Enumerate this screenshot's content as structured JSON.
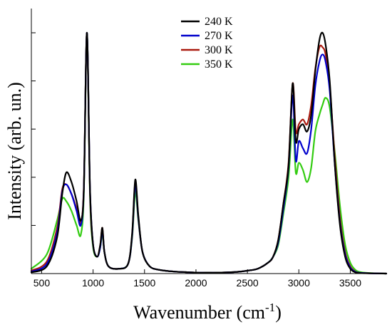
{
  "chart_data": {
    "type": "line",
    "xlabel": "Wavenumber (cm",
    "xlabel_superscript": "-1",
    "xlabel_suffix": ")",
    "ylabel": "Intensity (arb. un.)",
    "xlim": [
      400,
      3850
    ],
    "ylim": [
      0,
      1.0
    ],
    "xticks": [
      500,
      1000,
      1500,
      2000,
      2500,
      3000,
      3500
    ],
    "ytick_labels_shown": false,
    "grid": false,
    "legend_position": "top-center",
    "series": [
      {
        "name": "240 K",
        "color": "#000000",
        "x": [
          400,
          550,
          650,
          700,
          740,
          790,
          840,
          880,
          910,
          940,
          970,
          1000,
          1040,
          1070,
          1090,
          1110,
          1150,
          1250,
          1340,
          1380,
          1410,
          1440,
          1480,
          1550,
          1650,
          1800,
          1900,
          2000,
          2100,
          2200,
          2300,
          2400,
          2500,
          2600,
          2700,
          2750,
          2800,
          2850,
          2900,
          2940,
          2970,
          3000,
          3040,
          3080,
          3120,
          3160,
          3200,
          3230,
          3260,
          3300,
          3350,
          3400,
          3450,
          3500,
          3550,
          3600,
          3700,
          3850
        ],
        "y": [
          0.005,
          0.03,
          0.15,
          0.33,
          0.42,
          0.38,
          0.3,
          0.22,
          0.35,
          1.0,
          0.35,
          0.12,
          0.07,
          0.12,
          0.19,
          0.09,
          0.03,
          0.02,
          0.04,
          0.17,
          0.39,
          0.24,
          0.09,
          0.03,
          0.015,
          0.008,
          0.006,
          0.004,
          0.004,
          0.004,
          0.005,
          0.007,
          0.012,
          0.02,
          0.045,
          0.07,
          0.14,
          0.29,
          0.45,
          0.79,
          0.55,
          0.6,
          0.62,
          0.59,
          0.66,
          0.84,
          0.97,
          1.0,
          0.95,
          0.8,
          0.45,
          0.2,
          0.07,
          0.02,
          0.005,
          0.002,
          0.001,
          0.0
        ]
      },
      {
        "name": "270 K",
        "color": "#0000cc",
        "x": [
          400,
          550,
          650,
          700,
          740,
          790,
          840,
          880,
          910,
          940,
          970,
          1000,
          1040,
          1070,
          1090,
          1110,
          1150,
          1250,
          1340,
          1380,
          1410,
          1440,
          1480,
          1550,
          1650,
          1800,
          1900,
          2000,
          2100,
          2200,
          2300,
          2400,
          2500,
          2600,
          2700,
          2750,
          2800,
          2850,
          2900,
          2940,
          2970,
          3000,
          3040,
          3080,
          3120,
          3160,
          3200,
          3230,
          3260,
          3300,
          3350,
          3400,
          3450,
          3500,
          3550,
          3600,
          3700,
          3850
        ],
        "y": [
          0.008,
          0.04,
          0.17,
          0.34,
          0.37,
          0.33,
          0.26,
          0.2,
          0.35,
          1.0,
          0.35,
          0.12,
          0.07,
          0.11,
          0.18,
          0.09,
          0.03,
          0.02,
          0.04,
          0.16,
          0.37,
          0.23,
          0.09,
          0.03,
          0.015,
          0.008,
          0.006,
          0.004,
          0.004,
          0.004,
          0.005,
          0.007,
          0.012,
          0.02,
          0.045,
          0.07,
          0.13,
          0.27,
          0.44,
          0.74,
          0.47,
          0.55,
          0.52,
          0.5,
          0.6,
          0.78,
          0.88,
          0.91,
          0.88,
          0.76,
          0.45,
          0.21,
          0.08,
          0.025,
          0.007,
          0.003,
          0.001,
          0.0
        ]
      },
      {
        "name": "300 K",
        "color": "#aa1a0f",
        "x": [
          400,
          550,
          650,
          700,
          740,
          790,
          840,
          880,
          910,
          940,
          970,
          1000,
          1040,
          1070,
          1090,
          1110,
          1150,
          1250,
          1340,
          1380,
          1410,
          1440,
          1480,
          1550,
          1650,
          1800,
          1900,
          2000,
          2100,
          2200,
          2300,
          2400,
          2500,
          2600,
          2700,
          2750,
          2800,
          2850,
          2900,
          2940,
          2970,
          3000,
          3040,
          3080,
          3120,
          3160,
          3200,
          3230,
          3260,
          3300,
          3350,
          3400,
          3450,
          3500,
          3550,
          3600,
          3700,
          3850
        ],
        "y": [
          0.012,
          0.05,
          0.19,
          0.35,
          0.37,
          0.33,
          0.27,
          0.21,
          0.36,
          1.0,
          0.34,
          0.12,
          0.07,
          0.12,
          0.19,
          0.09,
          0.03,
          0.02,
          0.04,
          0.16,
          0.38,
          0.23,
          0.09,
          0.03,
          0.015,
          0.008,
          0.006,
          0.004,
          0.004,
          0.004,
          0.005,
          0.007,
          0.012,
          0.02,
          0.045,
          0.07,
          0.14,
          0.29,
          0.46,
          0.79,
          0.59,
          0.62,
          0.64,
          0.62,
          0.7,
          0.85,
          0.94,
          0.94,
          0.91,
          0.78,
          0.48,
          0.23,
          0.09,
          0.03,
          0.008,
          0.003,
          0.001,
          0.0
        ]
      },
      {
        "name": "350 K",
        "color": "#33cc11",
        "x": [
          400,
          550,
          650,
          700,
          740,
          790,
          840,
          880,
          910,
          940,
          970,
          1000,
          1040,
          1070,
          1090,
          1110,
          1150,
          1250,
          1340,
          1380,
          1410,
          1440,
          1480,
          1550,
          1650,
          1800,
          1900,
          2000,
          2100,
          2200,
          2300,
          2400,
          2500,
          2600,
          2700,
          2750,
          2800,
          2850,
          2900,
          2940,
          2970,
          3000,
          3040,
          3080,
          3120,
          3160,
          3200,
          3230,
          3260,
          3300,
          3350,
          3400,
          3450,
          3500,
          3550,
          3600,
          3700,
          3850
        ],
        "y": [
          0.02,
          0.08,
          0.22,
          0.31,
          0.3,
          0.26,
          0.2,
          0.16,
          0.33,
          1.0,
          0.32,
          0.11,
          0.07,
          0.11,
          0.17,
          0.09,
          0.03,
          0.02,
          0.04,
          0.15,
          0.34,
          0.22,
          0.09,
          0.03,
          0.015,
          0.008,
          0.006,
          0.004,
          0.004,
          0.004,
          0.005,
          0.007,
          0.012,
          0.02,
          0.045,
          0.07,
          0.12,
          0.25,
          0.4,
          0.64,
          0.42,
          0.46,
          0.43,
          0.38,
          0.44,
          0.59,
          0.66,
          0.7,
          0.73,
          0.69,
          0.5,
          0.28,
          0.12,
          0.045,
          0.015,
          0.006,
          0.002,
          0.0
        ]
      }
    ]
  }
}
